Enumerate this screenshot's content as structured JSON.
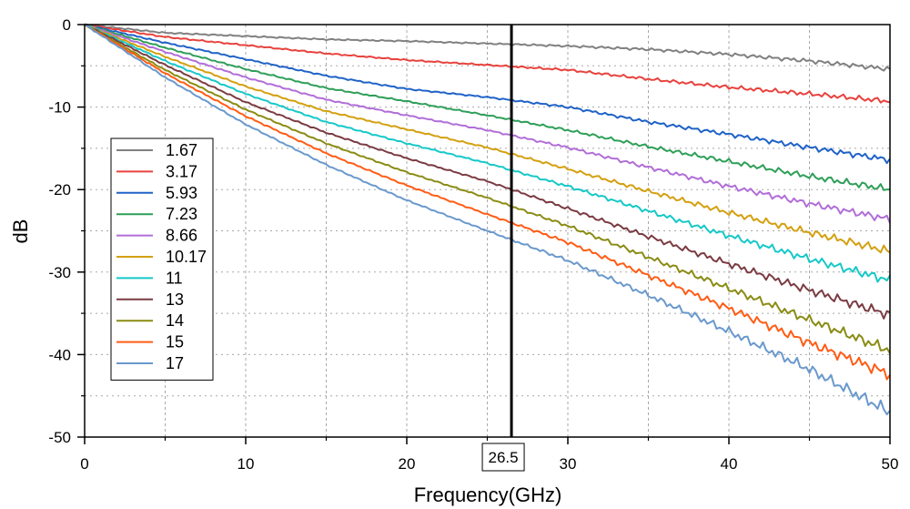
{
  "chart_data": {
    "type": "line",
    "title": "",
    "xlabel": "Frequency(GHz)",
    "ylabel": "dB",
    "xlim": [
      0,
      50
    ],
    "ylim": [
      -50,
      0
    ],
    "x_ticks": [
      0,
      10,
      20,
      30,
      40,
      50
    ],
    "y_ticks": [
      0,
      -10,
      -20,
      -30,
      -40,
      -50
    ],
    "grid": "dotted major and minor",
    "legend_position": "left",
    "marker": {
      "x": 26.5,
      "label": "26.5"
    },
    "x": [
      0,
      5,
      10,
      15,
      20,
      25,
      30,
      35,
      40,
      45,
      50
    ],
    "series": [
      {
        "name": "1.67",
        "color": "#808080",
        "values": [
          0,
          -1.0,
          -1.4,
          -1.8,
          -2.0,
          -2.3,
          -2.6,
          -3.0,
          -3.6,
          -4.4,
          -5.4
        ]
      },
      {
        "name": "3.17",
        "color": "#e8423d",
        "values": [
          0,
          -1.5,
          -2.5,
          -3.5,
          -4.3,
          -4.9,
          -5.5,
          -6.6,
          -7.6,
          -8.4,
          -9.3
        ]
      },
      {
        "name": "5.93",
        "color": "#1f62c7",
        "values": [
          0,
          -2.2,
          -4.2,
          -6.2,
          -7.8,
          -8.8,
          -10.0,
          -11.8,
          -13.3,
          -14.9,
          -16.4
        ]
      },
      {
        "name": "7.23",
        "color": "#2e9f58",
        "values": [
          0,
          -2.8,
          -5.4,
          -7.7,
          -9.3,
          -11.0,
          -12.8,
          -14.8,
          -16.6,
          -18.4,
          -20.0
        ]
      },
      {
        "name": "8.66",
        "color": "#b16ed8",
        "values": [
          0,
          -3.3,
          -6.4,
          -9.1,
          -11.0,
          -12.8,
          -14.9,
          -17.3,
          -19.6,
          -21.7,
          -23.6
        ]
      },
      {
        "name": "10.17",
        "color": "#d4a010",
        "values": [
          0,
          -3.9,
          -7.5,
          -10.5,
          -12.7,
          -14.9,
          -17.5,
          -20.2,
          -22.8,
          -25.2,
          -27.5
        ]
      },
      {
        "name": "11",
        "color": "#17c8c8",
        "values": [
          0,
          -4.4,
          -8.4,
          -11.8,
          -14.4,
          -16.8,
          -19.6,
          -22.6,
          -25.6,
          -28.4,
          -31.0
        ]
      },
      {
        "name": "13",
        "color": "#7b3b42",
        "values": [
          0,
          -4.9,
          -9.4,
          -13.1,
          -16.2,
          -19.0,
          -22.3,
          -25.7,
          -29.0,
          -32.2,
          -35.2
        ]
      },
      {
        "name": "14",
        "color": "#8a8c14",
        "values": [
          0,
          -5.5,
          -10.3,
          -14.4,
          -17.9,
          -21.0,
          -24.4,
          -28.2,
          -32.0,
          -35.8,
          -39.5
        ]
      },
      {
        "name": "15",
        "color": "#ff5c14",
        "values": [
          0,
          -5.9,
          -11.1,
          -15.6,
          -19.5,
          -23.0,
          -26.4,
          -30.4,
          -34.4,
          -38.6,
          -42.4
        ]
      },
      {
        "name": "17",
        "color": "#6a99cc",
        "values": [
          0,
          -6.4,
          -12.1,
          -17.0,
          -21.3,
          -25.0,
          -28.6,
          -32.8,
          -37.2,
          -41.8,
          -47.0
        ]
      }
    ]
  }
}
